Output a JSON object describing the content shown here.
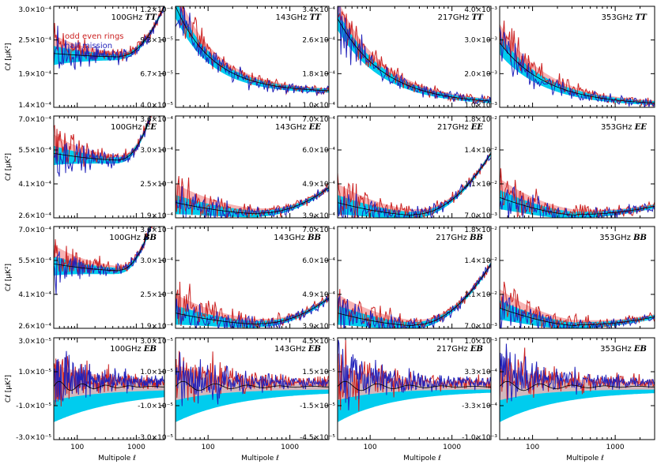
{
  "figure": {
    "xlabel": "Multipole ℓ",
    "ylabel": "Cℓ [μK²]",
    "legend": [
      {
        "label": "odd even rings",
        "color": "#cc2222"
      },
      {
        "label": "half mission",
        "color": "#2222bb"
      }
    ],
    "colors": {
      "odd_even": "#cc2222",
      "half_mission": "#2222bb",
      "band_blue": "#00ccee",
      "band_pink": "#f7b4b4",
      "model": "#000000"
    }
  },
  "chart_data": [
    {
      "type": "line",
      "row": 0,
      "col": 0,
      "freq": "100GHz",
      "spec": "TT",
      "shape": "u",
      "params": [
        2.2,
        1.6,
        1.5,
        0.5,
        0.6
      ],
      "yticks": [
        "3.0×10⁻⁴",
        "2.5×10⁻⁴",
        "1.9×10⁻⁴",
        "1.4×10⁻⁴"
      ],
      "xticks": [
        "100",
        "1000"
      ],
      "xlim": [
        40,
        3000
      ],
      "series": [
        {
          "name": "odd even rings"
        },
        {
          "name": "half mission"
        }
      ]
    },
    {
      "type": "line",
      "row": 0,
      "col": 1,
      "freq": "143GHz",
      "spec": "TT",
      "shape": "decay",
      "params": [
        0.85,
        0.15,
        0.0,
        0.45
      ],
      "yticks": [
        "1.2×10⁻⁴",
        "9.3×10⁻⁵",
        "6.7×10⁻⁵",
        "4.0×10⁻⁵"
      ],
      "xticks": [
        "100",
        "1000"
      ],
      "xlim": [
        40,
        3000
      ],
      "series": [
        {
          "name": "odd even rings"
        },
        {
          "name": "half mission"
        }
      ]
    },
    {
      "type": "line",
      "row": 0,
      "col": 2,
      "freq": "217GHz",
      "spec": "TT",
      "shape": "decay",
      "params": [
        0.85,
        0.03,
        0.0,
        0.55
      ],
      "yticks": [
        "3.4×10⁻⁴",
        "2.6×10⁻⁴",
        "1.8×10⁻⁴",
        "1.0×10⁻⁴"
      ],
      "xticks": [
        "100",
        "1000"
      ],
      "xlim": [
        40,
        3000
      ],
      "series": [
        {
          "name": "odd even rings"
        },
        {
          "name": "half mission"
        }
      ]
    },
    {
      "type": "line",
      "row": 0,
      "col": 3,
      "freq": "353GHz",
      "spec": "TT",
      "shape": "decay",
      "params": [
        0.62,
        0.02,
        0.0,
        0.55
      ],
      "yticks": [
        "4.0×10⁻³",
        "3.0×10⁻³",
        "2.0×10⁻³",
        "1.0×10⁻³"
      ],
      "xticks": [
        "100",
        "1000"
      ],
      "xlim": [
        40,
        3000
      ],
      "series": [
        {
          "name": "odd even rings"
        },
        {
          "name": "half mission"
        }
      ]
    },
    {
      "type": "line",
      "row": 1,
      "col": 0,
      "freq": "100GHz",
      "spec": "EE",
      "shape": "u",
      "params": [
        2.6,
        1.9,
        1.7,
        0.9,
        0.6
      ],
      "yticks": [
        "7.0×10⁻⁴",
        "5.5×10⁻⁴",
        "4.1×10⁻⁴",
        "2.6×10⁻⁴"
      ],
      "xticks": [
        "100",
        "1000"
      ],
      "xlim": [
        40,
        3000
      ],
      "series": [
        {
          "name": "odd even rings"
        },
        {
          "name": "half mission"
        }
      ]
    },
    {
      "type": "line",
      "row": 1,
      "col": 1,
      "freq": "143GHz",
      "spec": "EE",
      "shape": "u",
      "params": [
        2.6,
        0.45,
        0.12,
        0.25,
        0.55
      ],
      "yticks": [
        "3.6×10⁻⁴",
        "3.0×10⁻⁴",
        "2.5×10⁻⁴",
        "1.9×10⁻⁴"
      ],
      "xticks": [
        "100",
        "1000"
      ],
      "xlim": [
        40,
        3000
      ],
      "series": [
        {
          "name": "odd even rings"
        },
        {
          "name": "half mission"
        }
      ]
    },
    {
      "type": "line",
      "row": 1,
      "col": 2,
      "freq": "217GHz",
      "spec": "EE",
      "shape": "u",
      "params": [
        3.0,
        0.45,
        0.08,
        0.6,
        0.5
      ],
      "yticks": [
        "7.0×10⁻⁴",
        "6.0×10⁻⁴",
        "4.9×10⁻⁴",
        "3.9×10⁻⁴"
      ],
      "xticks": [
        "100",
        "1000"
      ],
      "xlim": [
        40,
        3000
      ],
      "series": [
        {
          "name": "odd even rings"
        },
        {
          "name": "half mission"
        }
      ]
    },
    {
      "type": "line",
      "row": 1,
      "col": 3,
      "freq": "353GHz",
      "spec": "EE",
      "shape": "u",
      "params": [
        3.0,
        0.6,
        0.08,
        0.08,
        0.5
      ],
      "yticks": [
        "1.8×10⁻²",
        "1.4×10⁻²",
        "1.1×10⁻²",
        "7.0×10⁻³"
      ],
      "xticks": [
        "100",
        "1000"
      ],
      "xlim": [
        40,
        3000
      ],
      "series": [
        {
          "name": "odd even rings"
        },
        {
          "name": "half mission"
        }
      ]
    },
    {
      "type": "line",
      "row": 2,
      "col": 0,
      "freq": "100GHz",
      "spec": "BB",
      "shape": "u",
      "params": [
        2.6,
        1.9,
        1.7,
        0.9,
        0.6
      ],
      "yticks": [
        "7.0×10⁻⁴",
        "5.5×10⁻⁴",
        "4.1×10⁻⁴",
        "2.6×10⁻⁴"
      ],
      "xticks": [
        "100",
        "1000"
      ],
      "xlim": [
        40,
        3000
      ],
      "series": [
        {
          "name": "odd even rings"
        },
        {
          "name": "half mission"
        }
      ]
    },
    {
      "type": "line",
      "row": 2,
      "col": 1,
      "freq": "143GHz",
      "spec": "BB",
      "shape": "u",
      "params": [
        2.4,
        0.45,
        0.12,
        0.25,
        0.55
      ],
      "yticks": [
        "3.6×10⁻⁴",
        "3.0×10⁻⁴",
        "2.5×10⁻⁴",
        "1.9×10⁻⁴"
      ],
      "xticks": [
        "100",
        "1000"
      ],
      "xlim": [
        40,
        3000
      ],
      "series": [
        {
          "name": "odd even rings"
        },
        {
          "name": "half mission"
        }
      ]
    },
    {
      "type": "line",
      "row": 2,
      "col": 2,
      "freq": "217GHz",
      "spec": "BB",
      "shape": "u",
      "params": [
        3.0,
        0.45,
        0.08,
        0.6,
        0.5
      ],
      "yticks": [
        "7.0×10⁻⁴",
        "6.0×10⁻⁴",
        "4.9×10⁻⁴",
        "3.9×10⁻⁴"
      ],
      "xticks": [
        "100",
        "1000"
      ],
      "xlim": [
        40,
        3000
      ],
      "series": [
        {
          "name": "odd even rings"
        },
        {
          "name": "half mission"
        }
      ]
    },
    {
      "type": "line",
      "row": 2,
      "col": 3,
      "freq": "353GHz",
      "spec": "BB",
      "shape": "u",
      "params": [
        3.0,
        0.6,
        0.08,
        0.08,
        0.5
      ],
      "yticks": [
        "1.8×10⁻²",
        "1.4×10⁻²",
        "1.1×10⁻²",
        "7.0×10⁻³"
      ],
      "xticks": [
        "100",
        "1000"
      ],
      "xlim": [
        40,
        3000
      ],
      "series": [
        {
          "name": "odd even rings"
        },
        {
          "name": "half mission"
        }
      ]
    },
    {
      "type": "line",
      "row": 3,
      "col": 0,
      "freq": "100GHz",
      "spec": "EB",
      "shape": "noise",
      "params": [
        1.6,
        0.35
      ],
      "yticks": [
        "3.0×10⁻⁵",
        "1.0×10⁻⁵",
        "-1.0×10⁻⁵",
        "-3.0×10⁻⁵"
      ],
      "xticks": [
        "100",
        "1000"
      ],
      "xlim": [
        40,
        3000
      ],
      "series": [
        {
          "name": "odd even rings"
        },
        {
          "name": "half mission"
        }
      ]
    },
    {
      "type": "line",
      "row": 3,
      "col": 1,
      "freq": "143GHz",
      "spec": "EB",
      "shape": "noise",
      "params": [
        2.4,
        0.0
      ],
      "yticks": [
        "3.0×10⁻⁵",
        "1.0×10⁻⁵",
        "-1.0×10⁻⁵",
        "-3.0×10⁻⁵"
      ],
      "xticks": [
        "100",
        "1000"
      ],
      "xlim": [
        40,
        3000
      ],
      "series": [
        {
          "name": "odd even rings"
        },
        {
          "name": "half mission"
        }
      ]
    },
    {
      "type": "line",
      "row": 3,
      "col": 2,
      "freq": "217GHz",
      "spec": "EB",
      "shape": "noise",
      "params": [
        2.8,
        0.15
      ],
      "yticks": [
        "4.5×10⁻⁵",
        "1.5×10⁻⁵",
        "-1.5×10⁻⁵",
        "-4.5×10⁻⁵"
      ],
      "xticks": [
        "100",
        "1000"
      ],
      "xlim": [
        40,
        3000
      ],
      "series": [
        {
          "name": "odd even rings"
        },
        {
          "name": "half mission"
        }
      ]
    },
    {
      "type": "line",
      "row": 3,
      "col": 3,
      "freq": "353GHz",
      "spec": "EB",
      "shape": "noise",
      "params": [
        2.6,
        0.1
      ],
      "yticks": [
        "1.0×10⁻³",
        "3.3×10⁻⁴",
        "-3.3×10⁻⁴",
        "-1.0×10⁻³"
      ],
      "xticks": [
        "100",
        "1000"
      ],
      "xlim": [
        40,
        3000
      ],
      "series": [
        {
          "name": "odd even rings"
        },
        {
          "name": "half mission"
        }
      ]
    }
  ]
}
